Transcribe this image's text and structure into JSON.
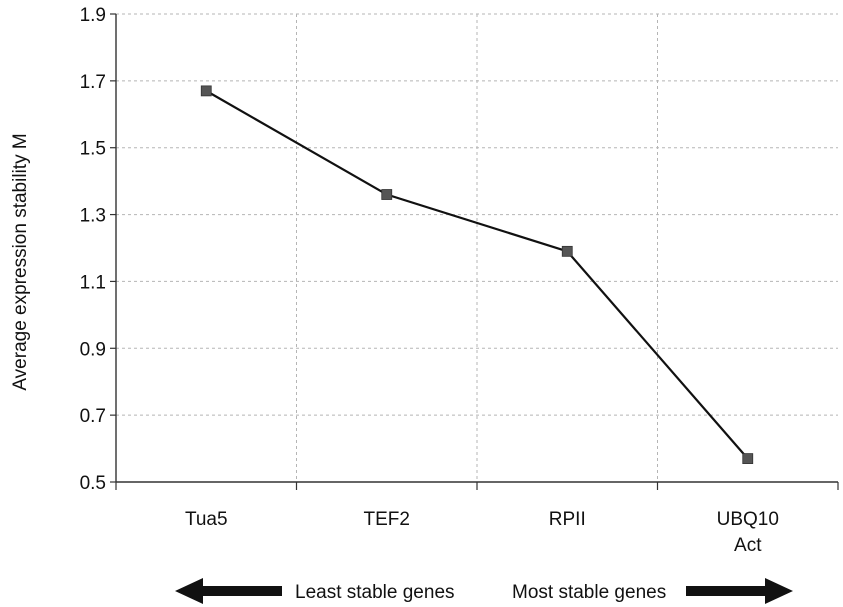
{
  "chart_data": {
    "type": "line",
    "ylabel": "Average expression stability M",
    "ylim": [
      0.5,
      1.9
    ],
    "yticks": [
      "0.5",
      "0.7",
      "0.9",
      "1.1",
      "1.3",
      "1.5",
      "1.7",
      "1.9"
    ],
    "grid": true,
    "categories": [
      {
        "lines": [
          "Tua5"
        ]
      },
      {
        "lines": [
          "TEF2"
        ]
      },
      {
        "lines": [
          "RPII"
        ]
      },
      {
        "lines": [
          "UBQ10",
          "Act"
        ]
      }
    ],
    "values": [
      1.67,
      1.36,
      1.19,
      0.57
    ],
    "marker": "square",
    "line_color": "#111111",
    "marker_color": "#555555"
  },
  "footer": {
    "left_text": "Least stable genes",
    "right_text": "Most stable genes"
  }
}
